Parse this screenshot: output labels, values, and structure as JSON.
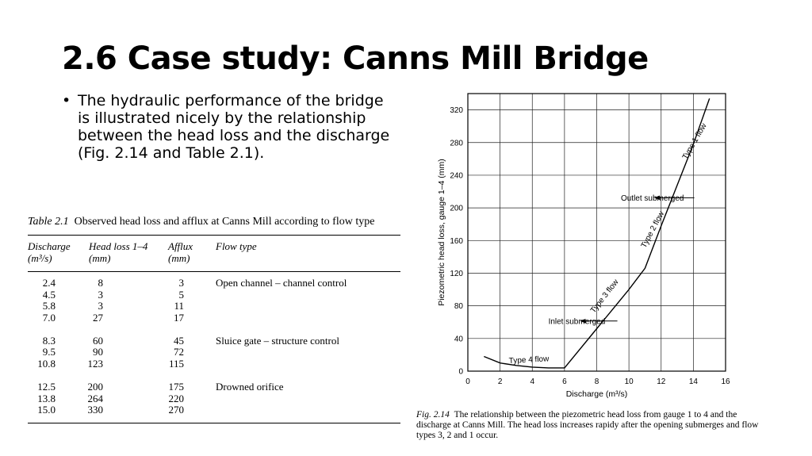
{
  "slide": {
    "title": "2.6 Case study: Canns Mill Bridge",
    "bullet": "The hydraulic performance of the bridge is illustrated nicely by the relationship between the head loss and the discharge (Fig. 2.14 and Table 2.1)."
  },
  "table": {
    "label": "Table 2.1",
    "caption": "Observed head loss and afflux at Canns Mill according to flow type",
    "headers": {
      "discharge": "Discharge",
      "discharge_unit": "(m³/s)",
      "headloss": "Head loss 1–4",
      "headloss_unit": "(mm)",
      "afflux": "Afflux",
      "afflux_unit": "(mm)",
      "flowtype": "Flow type"
    },
    "groups": [
      {
        "flow_type": "Open channel – channel control",
        "rows": [
          [
            "2.4",
            "8",
            "3"
          ],
          [
            "4.5",
            "3",
            "5"
          ],
          [
            "5.8",
            "3",
            "11"
          ],
          [
            "7.0",
            "27",
            "17"
          ]
        ]
      },
      {
        "flow_type": "Sluice gate – structure control",
        "rows": [
          [
            "8.3",
            "60",
            "45"
          ],
          [
            "9.5",
            "90",
            "72"
          ],
          [
            "10.8",
            "123",
            "115"
          ]
        ]
      },
      {
        "flow_type": "Drowned orifice",
        "rows": [
          [
            "12.5",
            "200",
            "175"
          ],
          [
            "13.8",
            "264",
            "220"
          ],
          [
            "15.0",
            "330",
            "270"
          ]
        ]
      }
    ]
  },
  "chart_data": {
    "type": "line",
    "xlabel": "Discharge (m³/s)",
    "ylabel": "Piezometric head loss, gauge 1–4 (mm)",
    "xlim": [
      0,
      16
    ],
    "ylim": [
      0,
      340
    ],
    "x_ticks": [
      0,
      2,
      4,
      6,
      8,
      10,
      12,
      14,
      16
    ],
    "y_ticks": [
      0,
      40,
      80,
      120,
      160,
      200,
      240,
      280,
      320
    ],
    "grid": true,
    "series": [
      {
        "x": [
          1.0,
          2.0,
          3.0,
          4.0,
          5.0,
          6.0,
          8.0,
          10.0,
          11.0,
          12.0,
          13.0,
          14.0,
          15.0
        ],
        "values": [
          18,
          10,
          7,
          5,
          4,
          4,
          52,
          100,
          126,
          178,
          228,
          278,
          334
        ]
      }
    ],
    "annotations": [
      {
        "text": "Type 4 flow",
        "x": 3.8,
        "y": 11,
        "angle": -3
      },
      {
        "text": "Type 3 flow",
        "x": 8.6,
        "y": 90,
        "angle": -52
      },
      {
        "text": "Type 2 flow",
        "x": 11.6,
        "y": 172,
        "angle": -62
      },
      {
        "text": "Type 1 flow",
        "x": 14.2,
        "y": 280,
        "angle": -60
      },
      {
        "text": "Inlet submerged",
        "x": 5.0,
        "y": 58,
        "arrow_to": [
          7.0,
          58
        ]
      },
      {
        "text": "Outlet submerged",
        "x": 9.5,
        "y": 209,
        "arrow_to": [
          11.6,
          209
        ]
      }
    ]
  },
  "figure": {
    "label": "Fig. 2.14",
    "caption": "The relationship between the piezometric head loss from gauge 1 to 4 and the discharge at Canns Mill. The head loss increases rapidy after the opening submerges and flow types 3, 2 and 1 occur."
  }
}
